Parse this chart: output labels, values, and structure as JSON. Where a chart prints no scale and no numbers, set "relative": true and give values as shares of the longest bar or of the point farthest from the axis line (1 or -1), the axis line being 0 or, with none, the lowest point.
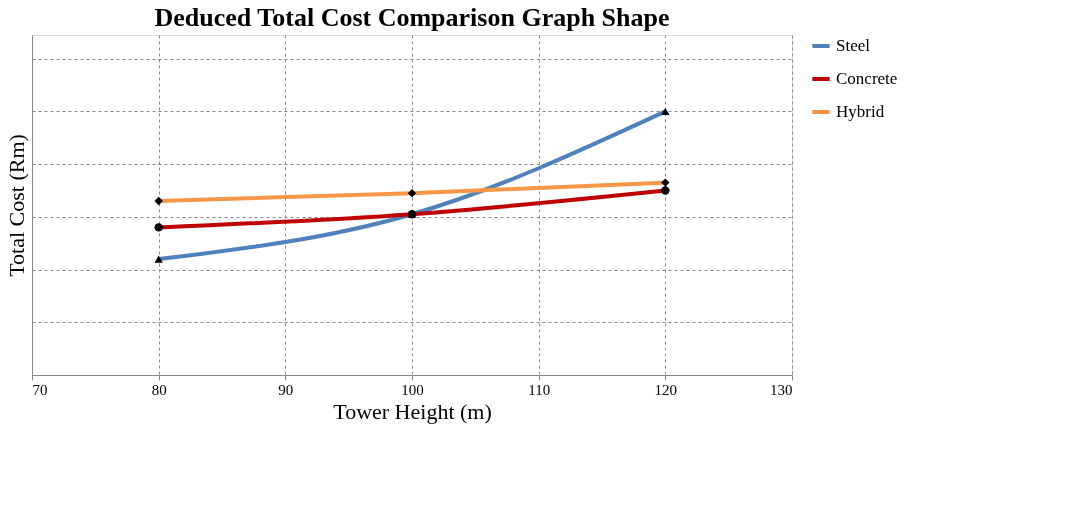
{
  "chart_data": {
    "type": "line",
    "title": "Deduced Total Cost Comparison Graph Shape",
    "xlabel": "Tower Height (m)",
    "ylabel": "Total Cost (Rm)",
    "relative": true,
    "x": [
      80,
      100,
      120
    ],
    "xlim": [
      70,
      130
    ],
    "xticks": [
      70,
      80,
      90,
      100,
      110,
      120,
      130
    ],
    "tick_labels": "x",
    "grid": true,
    "legend": "right",
    "line_style": "solid",
    "series": [
      {
        "name": "Steel",
        "color": "#4f81bd",
        "marker": "triangle",
        "values": [
          0.44,
          0.61,
          1
        ]
      },
      {
        "name": "Concrete",
        "color": "#c00000",
        "marker": "circle",
        "values": [
          0.56,
          0.61,
          0.7
        ]
      },
      {
        "name": "Hybrid",
        "color": "#f79646",
        "marker": "diamond",
        "values": [
          0.66,
          0.69,
          0.73
        ]
      }
    ]
  }
}
